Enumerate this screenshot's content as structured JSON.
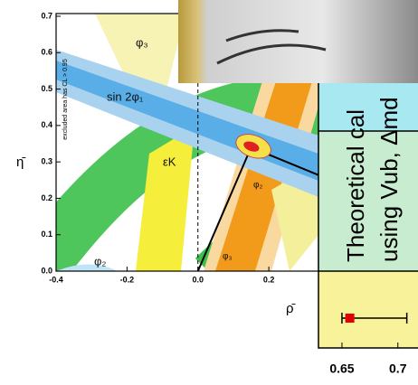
{
  "chart_data": [
    {
      "type": "contour",
      "xlabel": "ρ̄",
      "ylabel": "η̄",
      "xlim": [
        -0.4,
        0.34
      ],
      "ylim": [
        0,
        0.7
      ],
      "xticks": [
        -0.4,
        -0.2,
        {
          "value": 0,
          "label": "0.0"
        },
        0.2
      ],
      "yticks": [
        {
          "value": 0,
          "label": "0.0"
        },
        0.1,
        0.2,
        0.3,
        0.4,
        0.5,
        0.6,
        0.7
      ],
      "annotations": [
        "φ₃",
        "sin 2φ₁",
        "εK",
        "φ₂",
        "φ₃",
        "φ₂",
        "excluded area has CL > 0.95"
      ],
      "apex": {
        "x": 0.15,
        "y": 0.34
      }
    },
    {
      "type": "errorbar",
      "texts": [
        "Theoretical cal",
        "using Vub, Δmd"
      ],
      "xlim": [
        0.629,
        0.718
      ],
      "xticks": [
        0.65,
        0.7
      ],
      "x": 0.657,
      "xerr": [
        0.007,
        0.051
      ],
      "color": "#e00000"
    }
  ]
}
